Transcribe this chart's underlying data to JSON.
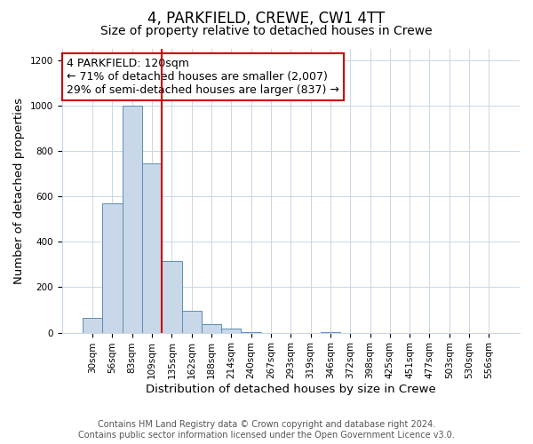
{
  "title": "4, PARKFIELD, CREWE, CW1 4TT",
  "subtitle": "Size of property relative to detached houses in Crewe",
  "xlabel": "Distribution of detached houses by size in Crewe",
  "ylabel": "Number of detached properties",
  "footer_line1": "Contains HM Land Registry data © Crown copyright and database right 2024.",
  "footer_line2": "Contains public sector information licensed under the Open Government Licence v3.0.",
  "annotation_line1": "4 PARKFIELD: 120sqm",
  "annotation_line2": "← 71% of detached houses are smaller (2,007)",
  "annotation_line3": "29% of semi-detached houses are larger (837) →",
  "bar_labels": [
    "30sqm",
    "56sqm",
    "83sqm",
    "109sqm",
    "135sqm",
    "162sqm",
    "188sqm",
    "214sqm",
    "240sqm",
    "267sqm",
    "293sqm",
    "319sqm",
    "346sqm",
    "372sqm",
    "398sqm",
    "425sqm",
    "451sqm",
    "477sqm",
    "503sqm",
    "530sqm",
    "556sqm"
  ],
  "bar_values": [
    65,
    570,
    1000,
    745,
    315,
    95,
    37,
    18,
    3,
    0,
    0,
    0,
    2,
    0,
    0,
    0,
    0,
    0,
    0,
    0,
    0
  ],
  "bar_color": "#c8d8e8",
  "bar_edge_color": "#5b8db8",
  "marker_bin_index": 3.5,
  "marker_color": "#cc0000",
  "ylim": [
    0,
    1250
  ],
  "yticks": [
    0,
    200,
    400,
    600,
    800,
    1000,
    1200
  ],
  "bg_color": "#ffffff",
  "plot_bg_color": "#ffffff",
  "grid_color": "#c8d8e8",
  "annotation_box_color": "#ffffff",
  "annotation_box_edge": "#cc0000",
  "title_fontsize": 12,
  "subtitle_fontsize": 10,
  "axis_label_fontsize": 9.5,
  "tick_fontsize": 7.5,
  "annotation_fontsize": 9,
  "footer_fontsize": 7
}
